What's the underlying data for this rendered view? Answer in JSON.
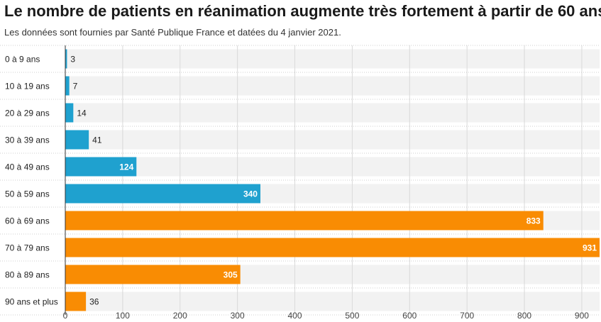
{
  "title": "Le nombre de patients en réanimation augmente très fortement à partir de 60 ans",
  "subtitle": "Les données sont fournies par Santé Publique France et datées du 4 janvier 2021.",
  "colors": {
    "under_60": "#1fa1cf",
    "from_60": "#f98c03",
    "band": "#f2f2f2",
    "grid": "#d9d9d9",
    "axis": "#333333"
  },
  "chart_data": {
    "type": "bar",
    "orientation": "horizontal",
    "title": "Le nombre de patients en réanimation augmente très fortement à partir de 60 ans",
    "subtitle": "Les données sont fournies par Santé Publique France et datées du 4 janvier 2021.",
    "categories": [
      "0 à 9 ans",
      "10 à 19 ans",
      "20 à 29 ans",
      "30 à 39 ans",
      "40 à 49 ans",
      "50 à 59 ans",
      "60 à 69 ans",
      "70 à 79 ans",
      "80 à 89 ans",
      "90 ans et plus"
    ],
    "values": [
      3,
      7,
      14,
      41,
      124,
      340,
      833,
      931,
      305,
      36
    ],
    "bar_colors": [
      "#1fa1cf",
      "#1fa1cf",
      "#1fa1cf",
      "#1fa1cf",
      "#1fa1cf",
      "#1fa1cf",
      "#f98c03",
      "#f98c03",
      "#f98c03",
      "#f98c03"
    ],
    "xlim": [
      0,
      931
    ],
    "xticks": [
      0,
      100,
      200,
      300,
      400,
      500,
      600,
      700,
      800,
      900
    ],
    "xlabel": "",
    "ylabel": "",
    "grid": true,
    "legend": "none"
  }
}
